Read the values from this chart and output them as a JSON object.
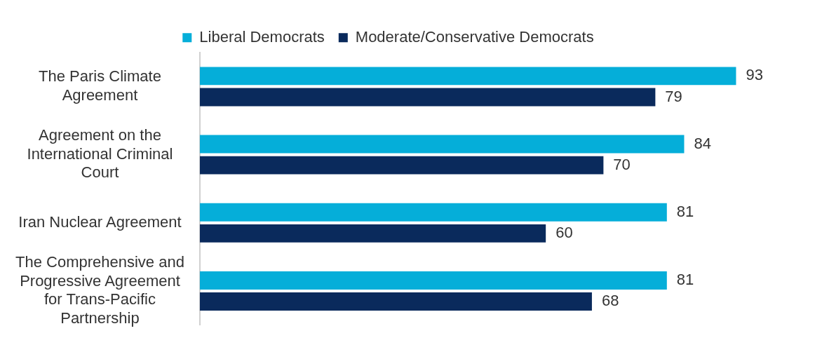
{
  "chart_data": {
    "type": "bar",
    "orientation": "horizontal",
    "data_labels": true,
    "legend": "top",
    "grid": false,
    "categories": [
      "The Paris Climate Agreement",
      "Agreement on the International Criminal Court",
      "Iran Nuclear Agreement",
      "The Comprehensive and Progressive Agreement for Trans-Pacific Partnership"
    ],
    "series": [
      {
        "name": "Liberal Democrats",
        "color": "#05aed9",
        "values": [
          93,
          84,
          81,
          81
        ]
      },
      {
        "name": "Moderate/Conservative Democrats",
        "color": "#0a2a5c",
        "values": [
          79,
          70,
          60,
          68
        ]
      }
    ]
  }
}
